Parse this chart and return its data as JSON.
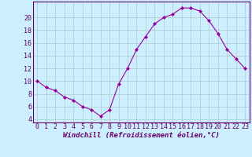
{
  "x": [
    0,
    1,
    2,
    3,
    4,
    5,
    6,
    7,
    8,
    9,
    10,
    11,
    12,
    13,
    14,
    15,
    16,
    17,
    18,
    19,
    20,
    21,
    22,
    23
  ],
  "y": [
    10,
    9,
    8.5,
    7.5,
    7,
    6,
    5.5,
    4.5,
    5.5,
    9.5,
    12,
    15,
    17,
    19,
    20,
    20.5,
    21.5,
    21.5,
    21,
    19.5,
    17.5,
    15,
    13.5,
    12
  ],
  "line_color": "#990099",
  "marker": "D",
  "marker_size": 2,
  "bg_color": "#cceeff",
  "grid_color": "#aacccc",
  "xlabel": "Windchill (Refroidissement éolien,°C)",
  "xlim": [
    -0.5,
    23.5
  ],
  "ylim": [
    3.5,
    22.5
  ],
  "yticks": [
    4,
    6,
    8,
    10,
    12,
    14,
    16,
    18,
    20
  ],
  "xticks": [
    0,
    1,
    2,
    3,
    4,
    5,
    6,
    7,
    8,
    9,
    10,
    11,
    12,
    13,
    14,
    15,
    16,
    17,
    18,
    19,
    20,
    21,
    22,
    23
  ],
  "label_fontsize": 6.5,
  "tick_fontsize": 6
}
